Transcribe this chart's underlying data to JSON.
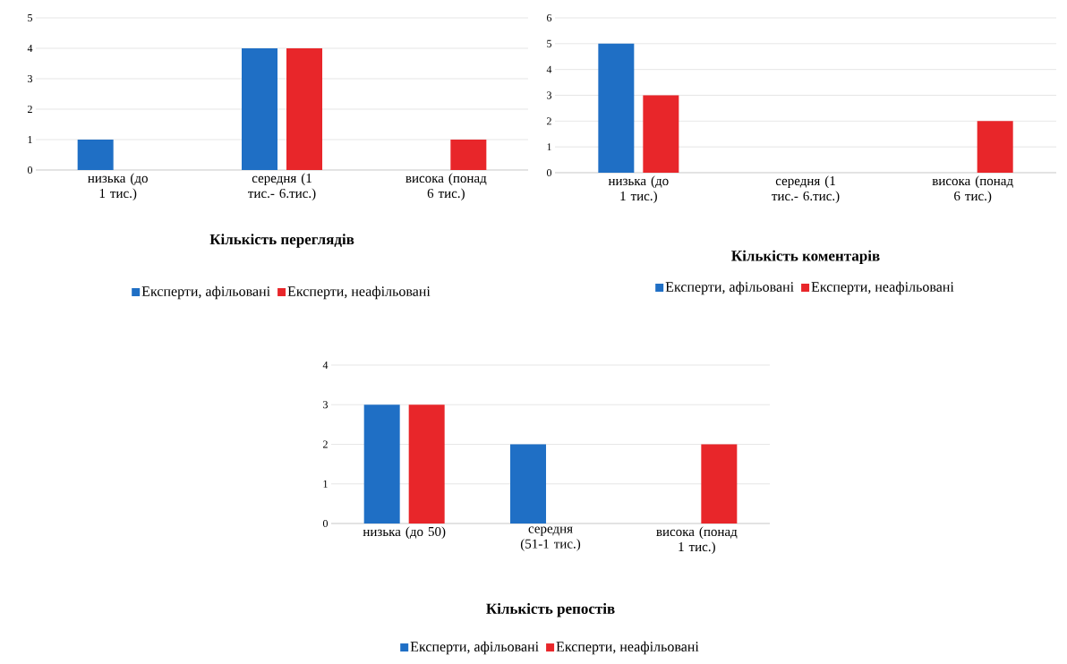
{
  "chart_data": [
    {
      "type": "bar",
      "title": "Кількість переглядів",
      "categories": [
        "низька (до 1 тис.)",
        "середня (1 тис.- 6.тис.)",
        "висока (понад 6 тис.)"
      ],
      "series": [
        {
          "name": "Експерти, афільовані",
          "color": "#1f6fc5",
          "values": [
            1,
            4,
            0
          ]
        },
        {
          "name": "Експерти, неафільовані",
          "color": "#e8262a",
          "values": [
            0,
            4,
            1
          ]
        }
      ],
      "ylim": [
        0,
        5
      ],
      "yticks": [
        0,
        1,
        2,
        3,
        4,
        5
      ],
      "grid": "y",
      "legend": "bottom"
    },
    {
      "type": "bar",
      "title": "Кількість коментарів",
      "categories": [
        "низька (до 1 тис.)",
        "середня (1 тис.- 6.тис.)",
        "висока (понад 6 тис.)"
      ],
      "series": [
        {
          "name": "Експерти, афільовані",
          "color": "#1f6fc5",
          "values": [
            5,
            0,
            0
          ]
        },
        {
          "name": "Експерти, неафільовані",
          "color": "#e8262a",
          "values": [
            3,
            0,
            2
          ]
        }
      ],
      "ylim": [
        0,
        6
      ],
      "yticks": [
        0,
        1,
        2,
        3,
        4,
        5,
        6
      ],
      "grid": "y",
      "legend": "bottom"
    },
    {
      "type": "bar",
      "title": "Кількість репостів",
      "categories": [
        "низька (до 50)",
        "середня (51-1 тис.)",
        "висока (понад 1 тис.)"
      ],
      "series": [
        {
          "name": "Експерти, афільовані",
          "color": "#1f6fc5",
          "values": [
            3,
            2,
            0
          ]
        },
        {
          "name": "Експерти, неафільовані",
          "color": "#e8262a",
          "values": [
            3,
            0,
            2
          ]
        }
      ],
      "ylim": [
        0,
        4
      ],
      "yticks": [
        0,
        1,
        2,
        3,
        4
      ],
      "grid": "y",
      "legend": "bottom"
    }
  ]
}
